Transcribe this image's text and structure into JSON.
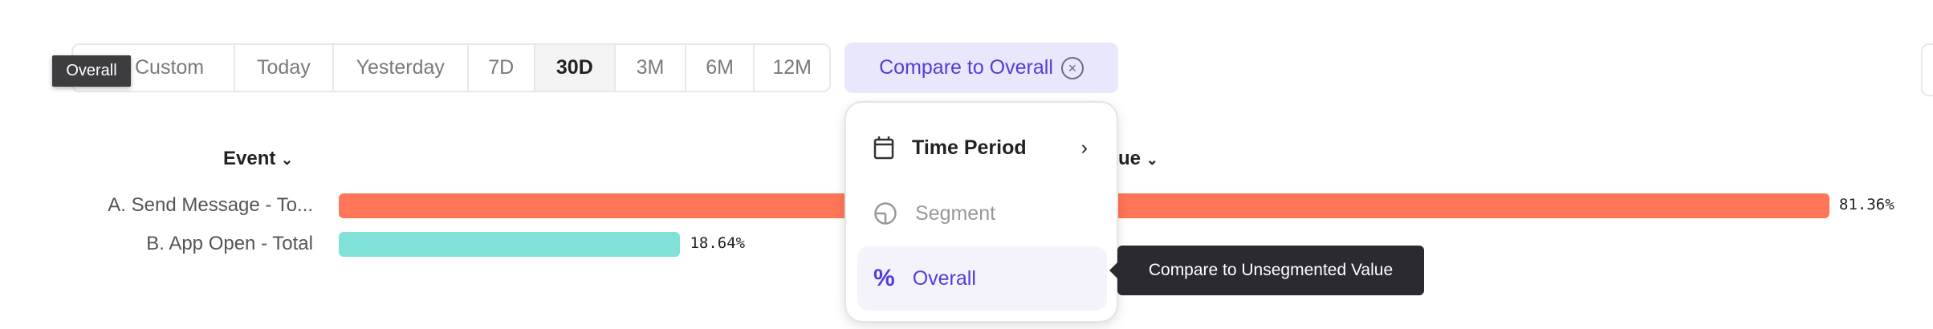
{
  "date_range": {
    "options": [
      "Custom",
      "Today",
      "Yesterday",
      "7D",
      "30D",
      "3M",
      "6M",
      "12M"
    ],
    "selected": "30D"
  },
  "compare_button": {
    "label": "Compare to Overall",
    "clear_icon": "close-circle-icon"
  },
  "tooltip_overall": "Overall",
  "table_headers": {
    "event": "Event",
    "value_partial": "ue"
  },
  "chart_data": {
    "type": "bar",
    "orientation": "horizontal",
    "categories": [
      "A. Send Message - To...",
      "B. App Open - Total"
    ],
    "values": [
      81.36,
      18.64
    ],
    "value_labels": [
      "81.36%",
      "18.64%"
    ],
    "colors": [
      "#ff7557",
      "#80e1d9"
    ]
  },
  "menu": {
    "items": [
      {
        "label": "Time Period",
        "icon": "calendar-icon",
        "state": "enabled",
        "has_submenu": true
      },
      {
        "label": "Segment",
        "icon": "segment-pie-icon",
        "state": "disabled"
      },
      {
        "label": "Overall",
        "icon": "percent-icon",
        "state": "selected"
      }
    ]
  },
  "tooltip_menu": "Compare to Unsegmented Value",
  "colors": {
    "accent": "#4f3fd8",
    "accent_bg": "#e9e7fb"
  }
}
